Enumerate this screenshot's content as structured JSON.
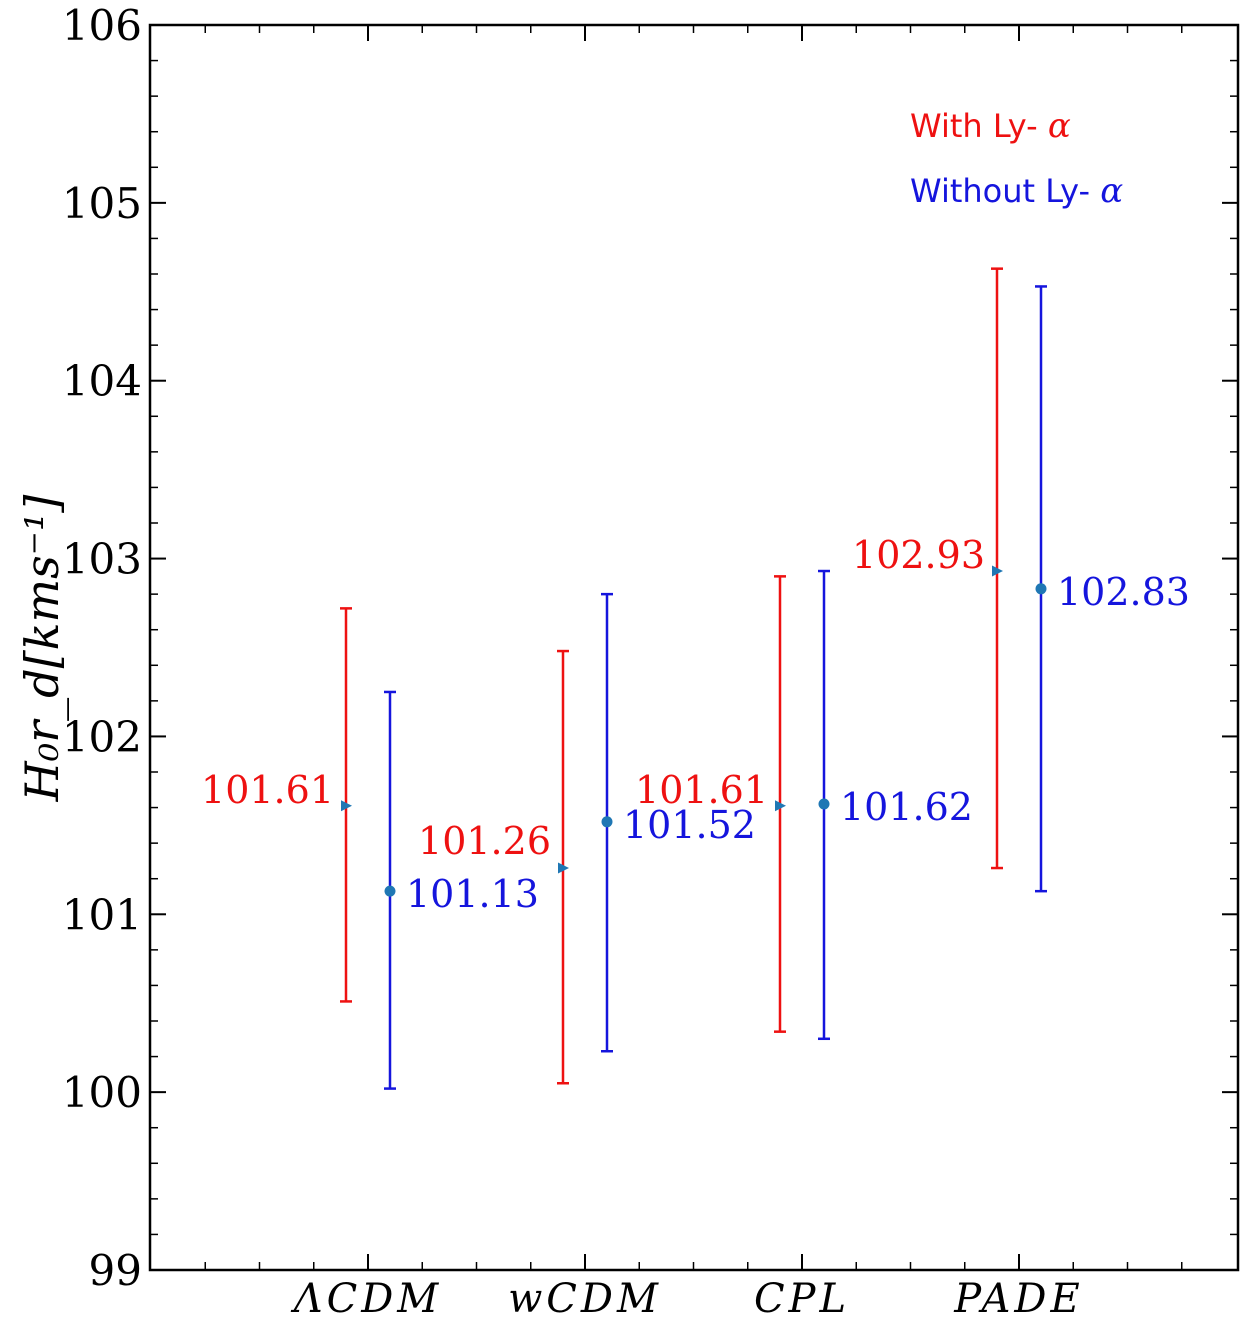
{
  "chart_data": {
    "type": "errorbar",
    "title": "",
    "xlabel": "",
    "ylabel": "H₀r_d[kms⁻¹]",
    "ylim": [
      99,
      106
    ],
    "yticks": [
      "99",
      "100",
      "101",
      "102",
      "103",
      "104",
      "105",
      "106"
    ],
    "categories": [
      "ΛCDM",
      "wCDM",
      "CPL",
      "PADE"
    ],
    "legend": {
      "placement": "top-right",
      "entries": [
        {
          "label": "With Ly- α",
          "color": "#ee1111"
        },
        {
          "label": "Without Ly- α",
          "color": "#1515dd"
        }
      ]
    },
    "series": [
      {
        "name": "With Ly- α",
        "color": "#ee1111",
        "marker": "triangle-right",
        "values": [
          101.61,
          101.26,
          101.61,
          102.93
        ],
        "lower": [
          100.51,
          100.05,
          100.34,
          101.26
        ],
        "upper": [
          102.72,
          102.48,
          102.9,
          104.63
        ],
        "labels": [
          "101.61",
          "101.26",
          "101.61",
          "102.93"
        ]
      },
      {
        "name": "Without Ly- α",
        "color": "#1515dd",
        "marker": "circle",
        "values": [
          101.13,
          101.52,
          101.62,
          102.83
        ],
        "lower": [
          100.02,
          100.23,
          100.3,
          101.13
        ],
        "upper": [
          102.25,
          102.8,
          102.93,
          104.53
        ],
        "labels": [
          "101.13",
          "101.52",
          "101.62",
          "102.83"
        ]
      }
    ],
    "marker_color": "#1f77b4"
  }
}
